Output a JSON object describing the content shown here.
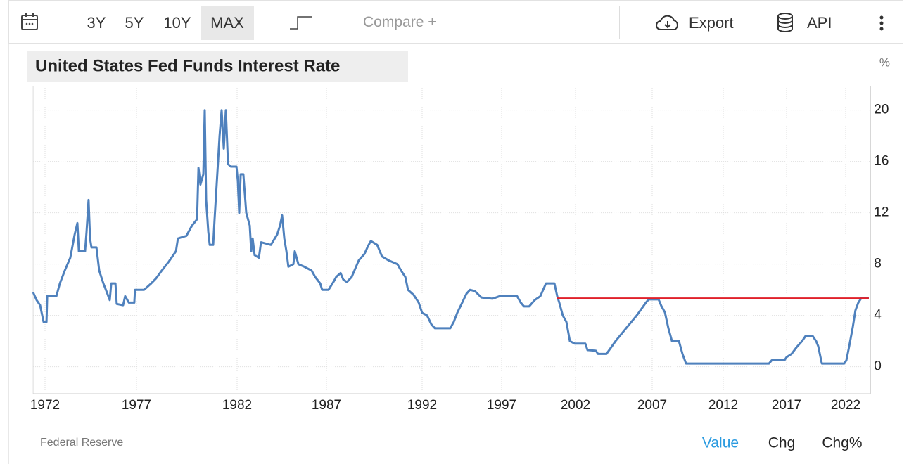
{
  "toolbar": {
    "ranges": [
      "3Y",
      "5Y",
      "10Y",
      "MAX"
    ],
    "compare_placeholder": "Compare +",
    "export": "Export",
    "api": "API"
  },
  "chart_data": {
    "type": "line",
    "title": "United States Fed Funds Interest Rate",
    "y_label": "%",
    "color": "#4f81bd",
    "x": [
      1971.35,
      1971.54,
      1971.73,
      1971.92,
      1972.08,
      1972.12,
      1972.62,
      1972.81,
      1973.08,
      1973.38,
      1973.62,
      1973.77,
      1973.85,
      1974.19,
      1974.27,
      1974.38,
      1974.46,
      1974.54,
      1974.81,
      1974.96,
      1975.19,
      1975.38,
      1975.54,
      1975.62,
      1975.85,
      1975.92,
      1976.27,
      1976.38,
      1976.58,
      1976.88,
      1976.92,
      1977.38,
      1977.73,
      1977.98,
      1978.26,
      1978.61,
      1978.96,
      1979.06,
      1979.48,
      1979.76,
      1980.01,
      1980.08,
      1980.18,
      1980.32,
      1980.39,
      1980.46,
      1980.57,
      1980.64,
      1980.81,
      1980.88,
      1981.13,
      1981.23,
      1981.34,
      1981.44,
      1981.55,
      1981.69,
      1981.97,
      1982.04,
      1982.12,
      1982.2,
      1982.35,
      1982.51,
      1982.71,
      1982.79,
      1982.87,
      1982.98,
      1983.22,
      1983.34,
      1983.89,
      1984.24,
      1984.4,
      1984.52,
      1984.64,
      1984.76,
      1984.87,
      1985.15,
      1985.23,
      1985.43,
      1985.75,
      1986.17,
      1986.37,
      1986.65,
      1986.76,
      1987.11,
      1987.4,
      1987.51,
      1987.74,
      1987.88,
      1988.07,
      1988.32,
      1988.69,
      1988.99,
      1989.17,
      1989.32,
      1989.65,
      1989.9,
      1990.24,
      1990.71,
      1990.9,
      1991.12,
      1991.26,
      1991.56,
      1991.82,
      1992.0,
      1992.31,
      1992.58,
      1992.8,
      1993.77,
      1993.99,
      1994.21,
      1994.52,
      1994.79,
      1995.01,
      1995.32,
      1995.72,
      1996.42,
      1996.87,
      1998.05,
      1998.29,
      1998.52,
      1998.86,
      1999.24,
      1999.62,
      1999.81,
      2000.0,
      2000.57,
      2000.76,
      2000.9,
      2001.14,
      2001.38,
      2001.62,
      2001.95,
      2002.64,
      2002.78,
      2003.33,
      2003.47,
      2004.02,
      2004.61,
      2005.3,
      2005.99,
      2006.59,
      2006.77,
      2007.45,
      2007.64,
      2007.89,
      2008.14,
      2008.39,
      2008.88,
      2009.13,
      2009.38,
      2015.61,
      2015.83,
      2016.83,
      2017.0,
      2017.42,
      2017.83,
      2018.31,
      2018.61,
      2019.2,
      2019.5,
      2019.68,
      2019.98,
      2021.88,
      2022.06,
      2022.3,
      2022.6,
      2022.83,
      2023.07,
      2023.31,
      2023.96
    ],
    "values": [
      5.8,
      5.2,
      4.8,
      3.5,
      3.5,
      5.5,
      5.5,
      6.5,
      7.5,
      8.5,
      10.3,
      11.2,
      9.0,
      9.0,
      10.5,
      13.0,
      10.0,
      9.3,
      9.3,
      7.5,
      6.5,
      5.8,
      5.2,
      6.5,
      6.5,
      4.9,
      4.8,
      5.5,
      5.0,
      5.0,
      6.0,
      6.0,
      6.5,
      6.9,
      7.5,
      8.2,
      9.0,
      10.0,
      10.2,
      11.0,
      11.5,
      15.5,
      14.2,
      15.0,
      20.0,
      13.0,
      10.5,
      9.5,
      9.5,
      11.5,
      18.0,
      20.0,
      17.0,
      20.0,
      15.8,
      15.6,
      15.6,
      14.5,
      12.0,
      15.0,
      15.0,
      12.0,
      11.0,
      9.0,
      10.0,
      8.7,
      8.5,
      9.7,
      9.5,
      10.3,
      11.0,
      11.8,
      10.0,
      9.0,
      7.8,
      8.0,
      9.0,
      8.0,
      7.8,
      7.5,
      7.0,
      6.5,
      6.0,
      6.0,
      6.7,
      7.0,
      7.3,
      6.8,
      6.6,
      7.0,
      8.3,
      8.8,
      9.4,
      9.8,
      9.5,
      8.6,
      8.3,
      8.0,
      7.5,
      7.0,
      6.0,
      5.6,
      5.0,
      4.2,
      4.0,
      3.3,
      3.0,
      3.0,
      3.5,
      4.2,
      5.0,
      5.7,
      6.0,
      5.9,
      5.4,
      5.3,
      5.5,
      5.5,
      5.0,
      4.7,
      4.7,
      5.2,
      5.5,
      6.0,
      6.5,
      6.5,
      5.5,
      5.0,
      4.0,
      3.5,
      2.0,
      1.8,
      1.8,
      1.3,
      1.25,
      1.0,
      1.0,
      2.0,
      3.0,
      4.0,
      5.0,
      5.25,
      5.25,
      4.75,
      4.25,
      3.0,
      2.0,
      2.0,
      1.0,
      0.25,
      0.25,
      0.5,
      0.5,
      0.75,
      1.0,
      1.5,
      2.0,
      2.4,
      2.4,
      2.0,
      1.6,
      0.25,
      0.25,
      0.5,
      1.6,
      3.1,
      4.4,
      5.0,
      5.33,
      5.33
    ],
    "reference_line": {
      "value": 5.33,
      "x_start": 2000.76,
      "x_end": 2023.96,
      "color": "#e0202a"
    },
    "xlim": [
      1971.35,
      2024.1
    ],
    "xticks": [
      1972,
      1977,
      1982,
      1987,
      1992,
      1997,
      2002,
      2007,
      2012,
      2017,
      2022
    ],
    "ylim": [
      -2.1,
      21.9
    ],
    "yticks": [
      0,
      4,
      8,
      12,
      16,
      20
    ],
    "grid": true
  },
  "footer": {
    "source": "Federal Reserve",
    "tabs": [
      "Value",
      "Chg",
      "Chg%"
    ]
  }
}
